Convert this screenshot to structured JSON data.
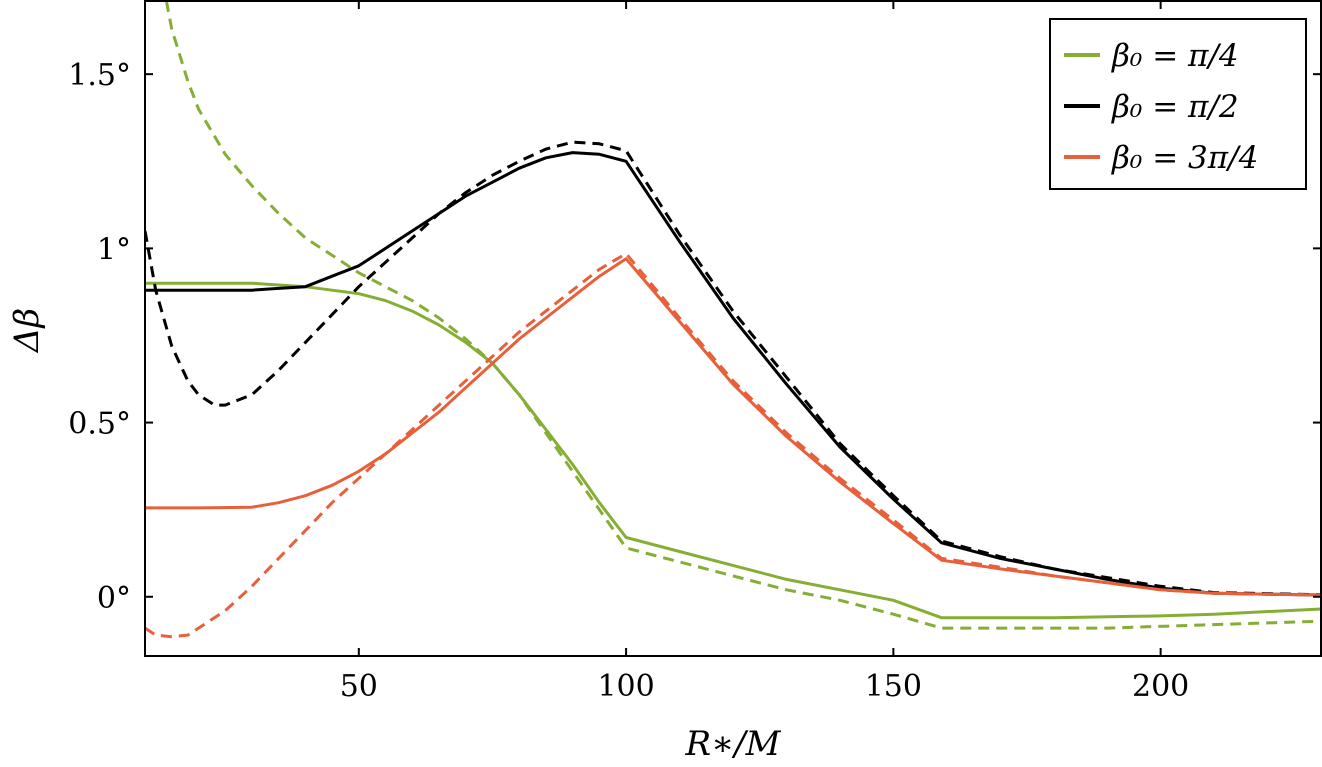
{
  "chart_data": {
    "type": "line",
    "title": "",
    "xlabel": "R∗/M",
    "ylabel": "Δβ",
    "xlim": [
      10,
      230
    ],
    "ylim": [
      -0.17,
      1.71
    ],
    "xticks": [
      {
        "value": 50,
        "label": "50"
      },
      {
        "value": 100,
        "label": "100"
      },
      {
        "value": 150,
        "label": "150"
      },
      {
        "value": 200,
        "label": "200"
      }
    ],
    "yticks": [
      {
        "value": 0,
        "label": "0°"
      },
      {
        "value": 0.5,
        "label": "0.5°"
      },
      {
        "value": 1,
        "label": "1°"
      },
      {
        "value": 1.5,
        "label": "1.5°"
      }
    ],
    "grid": false,
    "legend_position": "top-right",
    "legend": [
      {
        "label": "β₀ = π/4",
        "color": "#86ad34"
      },
      {
        "label": "β₀ = π/2",
        "color": "#000000"
      },
      {
        "label": "β₀ = 3π/4",
        "color": "#e8603a"
      }
    ],
    "series": [
      {
        "color": "#86ad34",
        "style": "solid",
        "group": 0,
        "points": [
          [
            10,
            0.9
          ],
          [
            20,
            0.9
          ],
          [
            30,
            0.9
          ],
          [
            40,
            0.89
          ],
          [
            45,
            0.88
          ],
          [
            50,
            0.87
          ],
          [
            55,
            0.85
          ],
          [
            60,
            0.82
          ],
          [
            65,
            0.78
          ],
          [
            70,
            0.73
          ],
          [
            75,
            0.67
          ],
          [
            80,
            0.58
          ],
          [
            85,
            0.48
          ],
          [
            90,
            0.38
          ],
          [
            95,
            0.27
          ],
          [
            100,
            0.17
          ],
          [
            110,
            0.13
          ],
          [
            120,
            0.09
          ],
          [
            130,
            0.05
          ],
          [
            140,
            0.02
          ],
          [
            150,
            -0.01
          ],
          [
            159,
            -0.06
          ],
          [
            170,
            -0.06
          ],
          [
            180,
            -0.06
          ],
          [
            200,
            -0.055
          ],
          [
            210,
            -0.05
          ],
          [
            230,
            -0.035
          ]
        ]
      },
      {
        "color": "#86ad34",
        "style": "dashed",
        "group": 0,
        "points": [
          [
            14,
            1.71
          ],
          [
            15,
            1.63
          ],
          [
            18,
            1.48
          ],
          [
            20,
            1.4
          ],
          [
            25,
            1.27
          ],
          [
            30,
            1.18
          ],
          [
            35,
            1.1
          ],
          [
            40,
            1.03
          ],
          [
            45,
            0.98
          ],
          [
            50,
            0.93
          ],
          [
            55,
            0.89
          ],
          [
            60,
            0.85
          ],
          [
            65,
            0.8
          ],
          [
            70,
            0.74
          ],
          [
            75,
            0.67
          ],
          [
            80,
            0.58
          ],
          [
            85,
            0.47
          ],
          [
            90,
            0.36
          ],
          [
            95,
            0.25
          ],
          [
            100,
            0.14
          ],
          [
            110,
            0.1
          ],
          [
            120,
            0.06
          ],
          [
            130,
            0.02
          ],
          [
            140,
            -0.01
          ],
          [
            150,
            -0.05
          ],
          [
            159,
            -0.09
          ],
          [
            170,
            -0.09
          ],
          [
            190,
            -0.09
          ],
          [
            210,
            -0.08
          ],
          [
            230,
            -0.07
          ]
        ]
      },
      {
        "color": "#000000",
        "style": "solid",
        "group": 1,
        "points": [
          [
            10,
            0.88
          ],
          [
            20,
            0.88
          ],
          [
            30,
            0.88
          ],
          [
            35,
            0.885
          ],
          [
            40,
            0.89
          ],
          [
            45,
            0.92
          ],
          [
            50,
            0.95
          ],
          [
            55,
            1.0
          ],
          [
            60,
            1.05
          ],
          [
            65,
            1.1
          ],
          [
            70,
            1.15
          ],
          [
            75,
            1.19
          ],
          [
            80,
            1.23
          ],
          [
            85,
            1.26
          ],
          [
            90,
            1.275
          ],
          [
            95,
            1.27
          ],
          [
            100,
            1.25
          ],
          [
            110,
            1.02
          ],
          [
            120,
            0.8
          ],
          [
            130,
            0.61
          ],
          [
            140,
            0.43
          ],
          [
            150,
            0.28
          ],
          [
            159,
            0.155
          ],
          [
            170,
            0.11
          ],
          [
            180,
            0.08
          ],
          [
            190,
            0.05
          ],
          [
            200,
            0.025
          ],
          [
            210,
            0.01
          ],
          [
            230,
            0.005
          ]
        ]
      },
      {
        "color": "#000000",
        "style": "dashed",
        "group": 1,
        "points": [
          [
            10,
            1.05
          ],
          [
            12,
            0.88
          ],
          [
            15,
            0.72
          ],
          [
            18,
            0.62
          ],
          [
            20,
            0.58
          ],
          [
            23,
            0.55
          ],
          [
            25,
            0.55
          ],
          [
            30,
            0.58
          ],
          [
            35,
            0.65
          ],
          [
            40,
            0.73
          ],
          [
            45,
            0.81
          ],
          [
            50,
            0.89
          ],
          [
            55,
            0.96
          ],
          [
            60,
            1.03
          ],
          [
            65,
            1.1
          ],
          [
            70,
            1.16
          ],
          [
            75,
            1.21
          ],
          [
            80,
            1.25
          ],
          [
            85,
            1.285
          ],
          [
            90,
            1.305
          ],
          [
            95,
            1.3
          ],
          [
            100,
            1.28
          ],
          [
            110,
            1.04
          ],
          [
            120,
            0.82
          ],
          [
            130,
            0.63
          ],
          [
            140,
            0.44
          ],
          [
            150,
            0.29
          ],
          [
            159,
            0.16
          ],
          [
            170,
            0.115
          ],
          [
            180,
            0.08
          ],
          [
            190,
            0.055
          ],
          [
            200,
            0.03
          ],
          [
            210,
            0.012
          ],
          [
            230,
            0.006
          ]
        ]
      },
      {
        "color": "#e8603a",
        "style": "solid",
        "group": 2,
        "points": [
          [
            10,
            0.255
          ],
          [
            20,
            0.255
          ],
          [
            30,
            0.257
          ],
          [
            35,
            0.27
          ],
          [
            40,
            0.29
          ],
          [
            45,
            0.32
          ],
          [
            50,
            0.36
          ],
          [
            55,
            0.41
          ],
          [
            60,
            0.47
          ],
          [
            65,
            0.53
          ],
          [
            70,
            0.6
          ],
          [
            75,
            0.67
          ],
          [
            80,
            0.74
          ],
          [
            85,
            0.8
          ],
          [
            90,
            0.86
          ],
          [
            95,
            0.92
          ],
          [
            100,
            0.97
          ],
          [
            110,
            0.79
          ],
          [
            120,
            0.61
          ],
          [
            130,
            0.46
          ],
          [
            140,
            0.33
          ],
          [
            150,
            0.21
          ],
          [
            159,
            0.105
          ],
          [
            170,
            0.08
          ],
          [
            180,
            0.06
          ],
          [
            190,
            0.04
          ],
          [
            200,
            0.02
          ],
          [
            210,
            0.01
          ],
          [
            230,
            0.005
          ]
        ]
      },
      {
        "color": "#e8603a",
        "style": "dashed",
        "group": 2,
        "points": [
          [
            10,
            -0.09
          ],
          [
            12,
            -0.11
          ],
          [
            15,
            -0.115
          ],
          [
            18,
            -0.11
          ],
          [
            20,
            -0.09
          ],
          [
            25,
            -0.04
          ],
          [
            30,
            0.03
          ],
          [
            35,
            0.11
          ],
          [
            40,
            0.19
          ],
          [
            45,
            0.27
          ],
          [
            50,
            0.34
          ],
          [
            55,
            0.41
          ],
          [
            60,
            0.48
          ],
          [
            65,
            0.55
          ],
          [
            70,
            0.62
          ],
          [
            75,
            0.69
          ],
          [
            80,
            0.76
          ],
          [
            85,
            0.82
          ],
          [
            90,
            0.88
          ],
          [
            95,
            0.94
          ],
          [
            100,
            0.985
          ],
          [
            110,
            0.8
          ],
          [
            120,
            0.62
          ],
          [
            130,
            0.47
          ],
          [
            140,
            0.34
          ],
          [
            150,
            0.22
          ],
          [
            159,
            0.11
          ],
          [
            170,
            0.085
          ],
          [
            180,
            0.06
          ],
          [
            190,
            0.04
          ],
          [
            200,
            0.02
          ],
          [
            210,
            0.01
          ],
          [
            230,
            0.005
          ]
        ]
      }
    ]
  }
}
